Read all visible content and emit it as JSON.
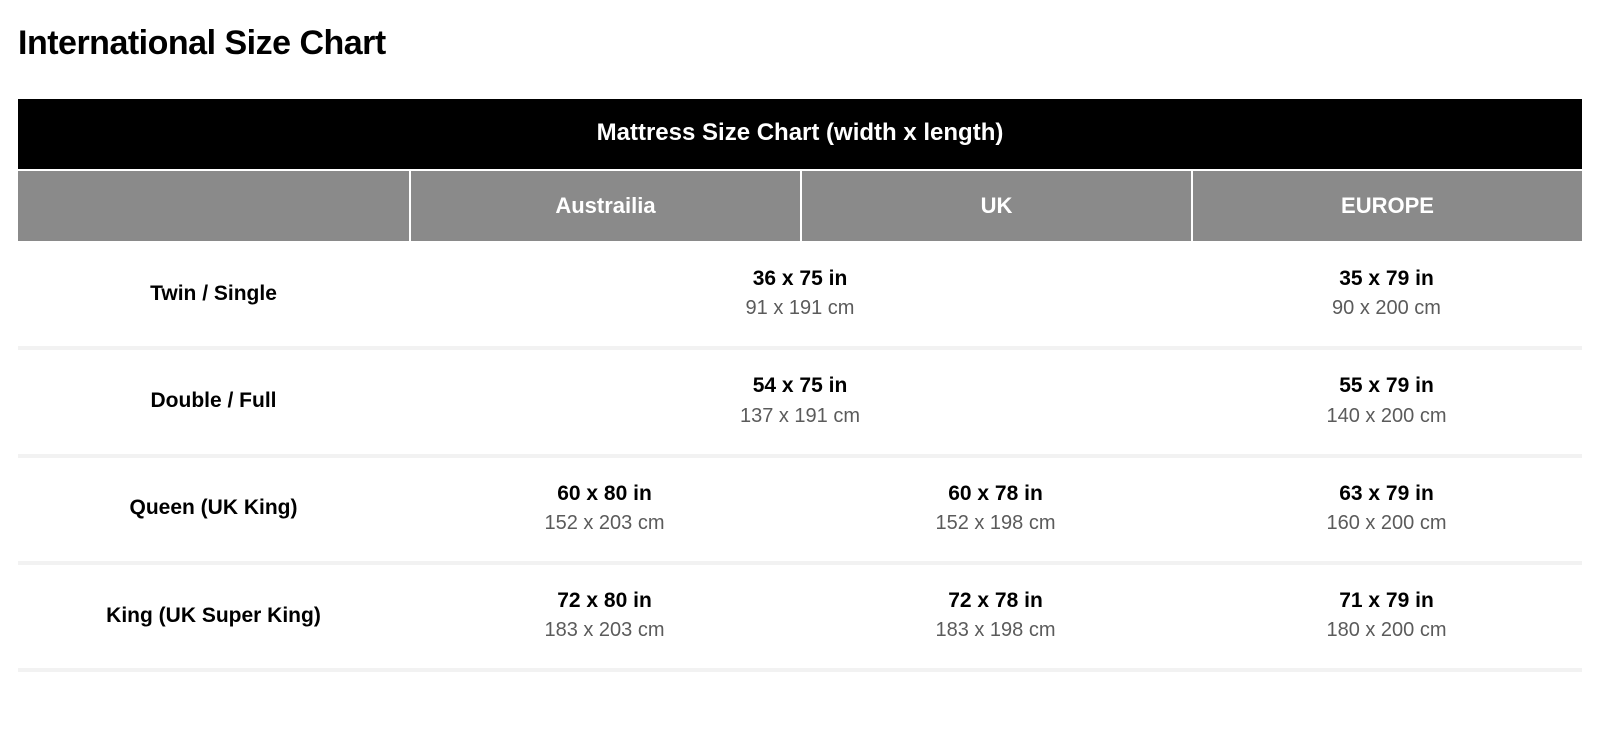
{
  "page": {
    "title": "International Size Chart"
  },
  "table": {
    "colors": {
      "title_bg": "#000000",
      "title_fg": "#ffffff",
      "header_bg": "#8a8a8a",
      "header_fg": "#ffffff",
      "row_bg": "#ffffff",
      "row_separator": "#f2f2f2",
      "primary_text": "#000000",
      "secondary_text": "#5b5b5b"
    },
    "fonts": {
      "page_title_size_pt": 26,
      "table_title_size_pt": 18,
      "header_size_pt": 16,
      "value_primary_size_pt": 16,
      "value_secondary_size_pt": 15
    },
    "title": "Mattress Size Chart (width x length)",
    "columns": [
      "",
      "Austrailia",
      "UK",
      "EUROPE"
    ],
    "rows": [
      {
        "label": "Twin / Single",
        "cells": [
          {
            "span": 2,
            "in": "36 x 75 in",
            "cm": "91 x 191 cm"
          },
          {
            "span": 1,
            "in": "35 x 79 in",
            "cm": "90 x 200 cm"
          }
        ]
      },
      {
        "label": "Double / Full",
        "cells": [
          {
            "span": 2,
            "in": "54 x 75 in",
            "cm": "137 x 191 cm"
          },
          {
            "span": 1,
            "in": "55 x 79 in",
            "cm": "140 x 200 cm"
          }
        ]
      },
      {
        "label": "Queen (UK King)",
        "cells": [
          {
            "span": 1,
            "in": "60 x 80 in",
            "cm": "152 x 203 cm"
          },
          {
            "span": 1,
            "in": "60 x 78 in",
            "cm": "152 x 198 cm"
          },
          {
            "span": 1,
            "in": "63 x 79 in",
            "cm": "160 x 200 cm"
          }
        ]
      },
      {
        "label": "King (UK Super King)",
        "cells": [
          {
            "span": 1,
            "in": "72 x 80 in",
            "cm": "183 x 203 cm"
          },
          {
            "span": 1,
            "in": "72 x 78 in",
            "cm": "183 x 198 cm"
          },
          {
            "span": 1,
            "in": "71 x 79 in",
            "cm": "180 x 200 cm"
          }
        ]
      }
    ]
  }
}
